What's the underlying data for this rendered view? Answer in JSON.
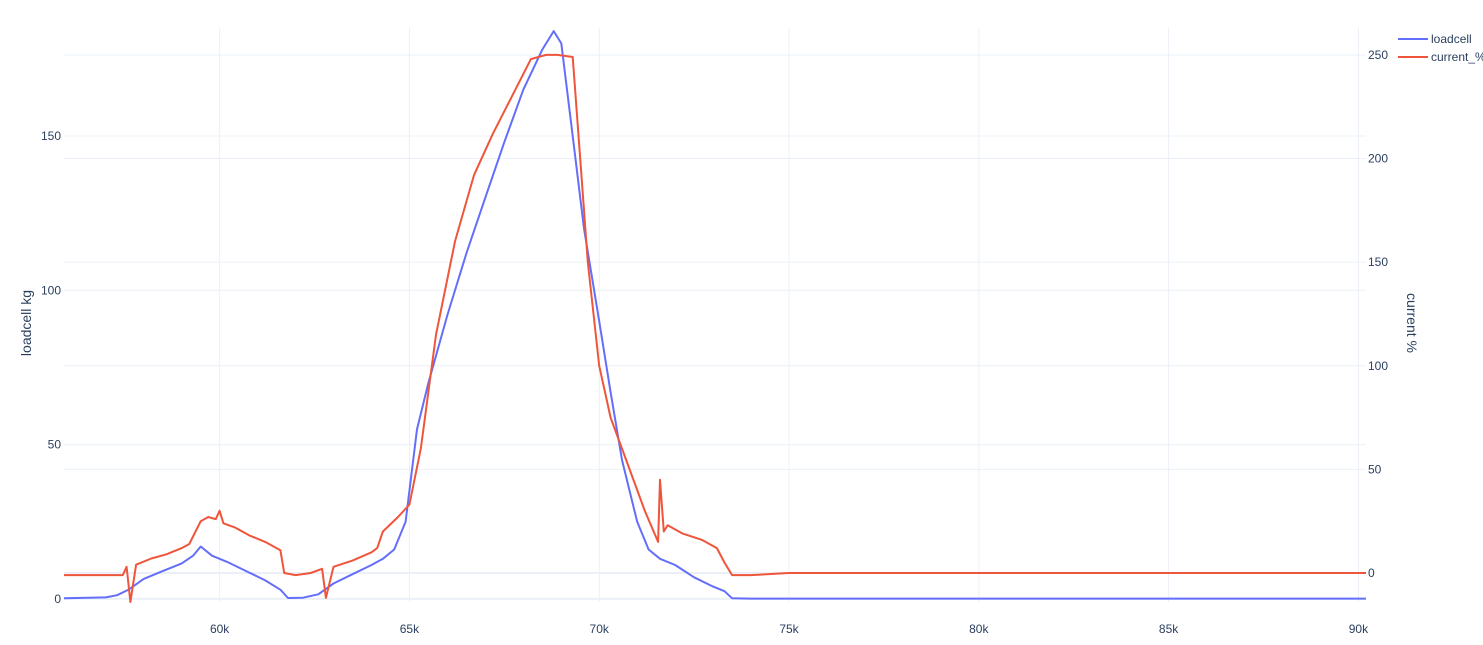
{
  "chart_data": {
    "type": "line",
    "title": "",
    "xlabel": "",
    "ylabel": "loadcell kg",
    "y2label": "current %",
    "xlim": [
      55900,
      90200
    ],
    "ylim": [
      -1,
      185
    ],
    "y2lim": [
      -14,
      263
    ],
    "x_ticks": [
      60000,
      65000,
      70000,
      75000,
      80000,
      85000,
      90000
    ],
    "x_tick_labels": [
      "60k",
      "65k",
      "70k",
      "75k",
      "80k",
      "85k",
      "90k"
    ],
    "y_ticks": [
      0,
      50,
      100,
      150
    ],
    "y_tick_labels": [
      "0",
      "50",
      "100",
      "150"
    ],
    "y2_ticks": [
      0,
      50,
      100,
      150,
      200,
      250
    ],
    "y2_tick_labels": [
      "0",
      "50",
      "100",
      "150",
      "200",
      "250"
    ],
    "grid": true,
    "legend_position": "top-right",
    "series": [
      {
        "name": "loadcell",
        "axis": "y",
        "color": "#636efa",
        "x": [
          55900,
          57000,
          57300,
          57600,
          58000,
          58500,
          59000,
          59300,
          59500,
          59800,
          60200,
          60700,
          61200,
          61600,
          61800,
          62200,
          62600,
          63000,
          63500,
          64000,
          64300,
          64600,
          64900,
          65200,
          65500,
          66000,
          66500,
          67000,
          67500,
          68000,
          68500,
          68800,
          69000,
          69300,
          69600,
          70000,
          70300,
          70600,
          71000,
          71300,
          71600,
          72000,
          72500,
          73000,
          73300,
          73500,
          74000,
          76000,
          80000,
          85000,
          90200
        ],
        "y": [
          0.2,
          0.5,
          1.2,
          3,
          6.5,
          9,
          11.5,
          14,
          17,
          14,
          12,
          9,
          6,
          3,
          0.3,
          0.4,
          1.5,
          5,
          8,
          11,
          13,
          16,
          25,
          55,
          70,
          92,
          112,
          130,
          148,
          165,
          178,
          184,
          180,
          150,
          120,
          90,
          67,
          45,
          25,
          16,
          13,
          11,
          7,
          4,
          2.5,
          0.2,
          0.1,
          0.1,
          0.1,
          0.1,
          0.1
        ]
      },
      {
        "name": "current_%",
        "axis": "y2",
        "color": "#ef553b",
        "x": [
          55900,
          56500,
          57000,
          57450,
          57550,
          57650,
          57800,
          58200,
          58600,
          59000,
          59200,
          59500,
          59700,
          59900,
          60000,
          60100,
          60400,
          60800,
          61200,
          61600,
          61700,
          62000,
          62400,
          62700,
          62800,
          63000,
          63500,
          64000,
          64150,
          64300,
          64700,
          65000,
          65300,
          65700,
          66200,
          66700,
          67200,
          67700,
          68200,
          68600,
          68900,
          69300,
          69500,
          69700,
          70000,
          70300,
          70700,
          71200,
          71550,
          71600,
          71700,
          71800,
          72200,
          72700,
          73100,
          73300,
          73500,
          74000,
          75000,
          80000,
          85000,
          90200
        ],
        "y": [
          -1,
          -1,
          -1,
          -1,
          3,
          -14,
          4,
          7,
          9,
          12,
          14,
          25,
          27,
          26,
          30,
          24,
          22,
          18,
          15,
          11,
          0,
          -1,
          0,
          2,
          -12,
          3,
          6,
          10,
          12,
          20,
          27,
          33,
          60,
          115,
          160,
          192,
          212,
          230,
          248,
          250,
          250,
          249,
          200,
          150,
          100,
          75,
          55,
          30,
          15,
          45,
          20,
          23,
          19,
          16,
          12,
          5,
          -1,
          -1,
          0,
          0,
          0,
          0
        ]
      }
    ]
  }
}
